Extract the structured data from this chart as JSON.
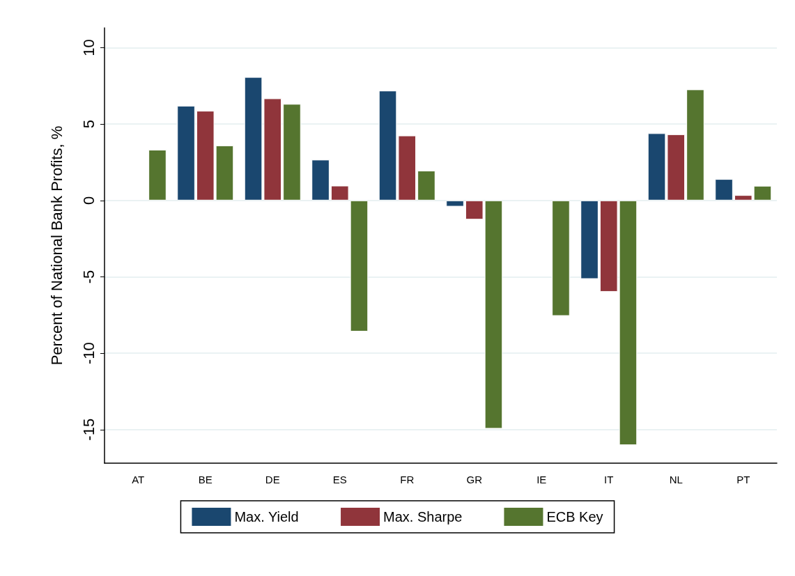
{
  "chart_data": {
    "type": "bar",
    "ylabel": "Percent of National Bank Profits, %",
    "categories": [
      "AT",
      "BE",
      "DE",
      "ES",
      "FR",
      "GR",
      "IE",
      "IT",
      "NL",
      "PT"
    ],
    "series": [
      {
        "name": "Max. Yield",
        "color": "#1a476f",
        "values": [
          null,
          6.2,
          8.08,
          2.67,
          7.19,
          -0.4,
          null,
          -5.14,
          4.4,
          1.4
        ]
      },
      {
        "name": "Max. Sharpe",
        "color": "#90353b",
        "values": [
          null,
          5.87,
          6.68,
          0.97,
          4.25,
          -1.25,
          null,
          -5.98,
          4.33,
          0.35
        ]
      },
      {
        "name": "ECB Key",
        "color": "#55752f",
        "values": [
          3.32,
          3.6,
          6.32,
          -8.58,
          1.95,
          -14.94,
          -7.56,
          -16.02,
          7.27,
          0.96
        ]
      }
    ],
    "ylim": [
      -17.2,
      11.3
    ],
    "yticks": [
      -15,
      -10,
      -5,
      0,
      5,
      10
    ],
    "grid": "y",
    "legend": "bottom"
  }
}
